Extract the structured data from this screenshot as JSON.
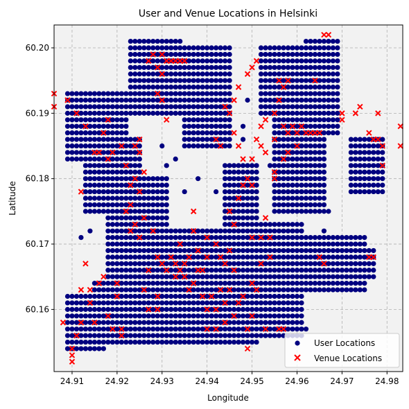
{
  "chart_data": {
    "type": "scatter",
    "title": "User and Venue Locations in Helsinki",
    "xlabel": "Longitude",
    "ylabel": "Latitude",
    "xlim": [
      24.906,
      24.9835
    ],
    "ylim": [
      60.1505,
      60.2035
    ],
    "x_ticks": [
      "24.91",
      "24.92",
      "24.93",
      "24.94",
      "24.95",
      "24.96",
      "24.97",
      "24.98"
    ],
    "y_ticks": [
      "60.16",
      "60.17",
      "60.18",
      "60.19",
      "60.20"
    ],
    "grid": true,
    "legend_position": "bottom-right",
    "series": [
      {
        "name": "User Locations",
        "marker": "circle",
        "color": "#000080",
        "grid_step": [
          0.001,
          0.001
        ],
        "regions": [
          {
            "x_range": [
              24.909,
              24.917
            ],
            "y_range": [
              60.154,
              60.162
            ]
          },
          {
            "x_range": [
              24.915,
              24.926
            ],
            "y_range": [
              60.155,
              60.164
            ]
          },
          {
            "x_range": [
              24.909,
              24.922
            ],
            "y_range": [
              60.183,
              60.193
            ]
          },
          {
            "x_range": [
              24.913,
              24.925
            ],
            "y_range": [
              60.175,
              60.186
            ]
          },
          {
            "x_range": [
              24.918,
              24.931
            ],
            "y_range": [
              60.165,
              60.18
            ]
          },
          {
            "x_range": [
              24.922,
              24.928
            ],
            "y_range": [
              60.16,
              60.17
            ]
          },
          {
            "x_range": [
              24.927,
              24.939
            ],
            "y_range": [
              60.155,
              60.172
            ]
          },
          {
            "x_range": [
              24.923,
              24.934
            ],
            "y_range": [
              60.19,
              60.201
            ]
          },
          {
            "x_range": [
              24.935,
              24.945
            ],
            "y_range": [
              60.185,
              60.2
            ]
          },
          {
            "x_range": [
              24.938,
              24.951
            ],
            "y_range": [
              60.155,
              60.172
            ]
          },
          {
            "x_range": [
              24.944,
              24.951
            ],
            "y_range": [
              60.172,
              60.182
            ]
          },
          {
            "x_range": [
              24.951,
              24.961
            ],
            "y_range": [
              60.156,
              60.173
            ]
          },
          {
            "x_range": [
              24.955,
              24.966
            ],
            "y_range": [
              60.175,
              60.19
            ]
          },
          {
            "x_range": [
              24.952,
              24.962
            ],
            "y_range": [
              60.19,
              60.2
            ]
          },
          {
            "x_range": [
              24.962,
              24.969
            ],
            "y_range": [
              60.187,
              60.201
            ]
          },
          {
            "x_range": [
              24.96,
              24.975
            ],
            "y_range": [
              60.163,
              60.171
            ]
          },
          {
            "x_range": [
              24.972,
              24.979
            ],
            "y_range": [
              60.178,
              60.186
            ]
          },
          {
            "x_range": [
              24.972,
              24.977
            ],
            "y_range": [
              60.165,
              60.169
            ]
          }
        ],
        "points": [
          [
            24.93,
            60.185
          ],
          [
            24.931,
            60.182
          ],
          [
            24.942,
            60.178
          ],
          [
            24.948,
            60.188
          ],
          [
            24.949,
            60.192
          ],
          [
            24.954,
            60.182
          ],
          [
            24.948,
            60.186
          ],
          [
            24.959,
            60.165
          ],
          [
            24.96,
            60.158
          ],
          [
            24.962,
            60.157
          ],
          [
            24.912,
            60.171
          ],
          [
            24.914,
            60.172
          ],
          [
            24.938,
            60.18
          ],
          [
            24.935,
            60.178
          ],
          [
            24.933,
            60.183
          ],
          [
            24.967,
            60.175
          ],
          [
            24.966,
            60.172
          ],
          [
            24.946,
            60.176
          ]
        ]
      },
      {
        "name": "Venue Locations",
        "marker": "x",
        "color": "#ff0000",
        "points": [
          [
            24.906,
            60.193
          ],
          [
            24.906,
            60.191
          ],
          [
            24.909,
            60.192
          ],
          [
            24.908,
            60.158
          ],
          [
            24.91,
            60.154
          ],
          [
            24.91,
            60.153
          ],
          [
            24.91,
            60.152
          ],
          [
            24.911,
            60.156
          ],
          [
            24.912,
            60.158
          ],
          [
            24.912,
            60.163
          ],
          [
            24.914,
            60.161
          ],
          [
            24.914,
            60.163
          ],
          [
            24.915,
            60.158
          ],
          [
            24.916,
            60.164
          ],
          [
            24.917,
            60.165
          ],
          [
            24.918,
            60.159
          ],
          [
            24.919,
            60.157
          ],
          [
            24.92,
            60.162
          ],
          [
            24.92,
            60.164
          ],
          [
            24.921,
            60.157
          ],
          [
            24.921,
            60.156
          ],
          [
            24.912,
            60.178
          ],
          [
            24.913,
            60.167
          ],
          [
            24.911,
            60.19
          ],
          [
            24.913,
            60.188
          ],
          [
            24.915,
            60.184
          ],
          [
            24.916,
            60.184
          ],
          [
            24.917,
            60.187
          ],
          [
            24.918,
            60.189
          ],
          [
            24.918,
            60.183
          ],
          [
            24.919,
            60.184
          ],
          [
            24.921,
            60.185
          ],
          [
            24.922,
            60.182
          ],
          [
            24.923,
            60.179
          ],
          [
            24.923,
            60.176
          ],
          [
            24.922,
            60.175
          ],
          [
            24.924,
            60.18
          ],
          [
            24.925,
            60.184
          ],
          [
            24.926,
            60.181
          ],
          [
            24.925,
            60.178
          ],
          [
            24.924,
            60.173
          ],
          [
            24.923,
            60.172
          ],
          [
            24.925,
            60.171
          ],
          [
            24.926,
            60.174
          ],
          [
            24.928,
            60.172
          ],
          [
            24.929,
            60.168
          ],
          [
            24.93,
            60.167
          ],
          [
            24.927,
            60.166
          ],
          [
            24.926,
            60.163
          ],
          [
            24.927,
            60.16
          ],
          [
            24.929,
            60.162
          ],
          [
            24.929,
            60.16
          ],
          [
            24.925,
            60.186
          ],
          [
            24.924,
            60.185
          ],
          [
            24.927,
            60.198
          ],
          [
            24.928,
            60.199
          ],
          [
            24.929,
            60.197
          ],
          [
            24.93,
            60.196
          ],
          [
            24.931,
            60.198
          ],
          [
            24.932,
            60.198
          ],
          [
            24.933,
            60.198
          ],
          [
            24.934,
            60.198
          ],
          [
            24.935,
            60.198
          ],
          [
            24.929,
            60.193
          ],
          [
            24.93,
            60.192
          ],
          [
            24.93,
            60.199
          ],
          [
            24.931,
            60.189
          ],
          [
            24.931,
            60.166
          ],
          [
            24.932,
            60.168
          ],
          [
            24.933,
            60.165
          ],
          [
            24.933,
            60.167
          ],
          [
            24.934,
            60.166
          ],
          [
            24.935,
            60.165
          ],
          [
            24.935,
            60.167
          ],
          [
            24.936,
            60.168
          ],
          [
            24.934,
            60.17
          ],
          [
            24.936,
            60.163
          ],
          [
            24.937,
            60.164
          ],
          [
            24.938,
            60.166
          ],
          [
            24.938,
            60.169
          ],
          [
            24.939,
            60.166
          ],
          [
            24.937,
            60.175
          ],
          [
            24.937,
            60.172
          ],
          [
            24.939,
            60.162
          ],
          [
            24.94,
            60.16
          ],
          [
            24.94,
            60.157
          ],
          [
            24.941,
            60.162
          ],
          [
            24.942,
            60.16
          ],
          [
            24.942,
            60.157
          ],
          [
            24.943,
            60.163
          ],
          [
            24.944,
            60.161
          ],
          [
            24.944,
            60.158
          ],
          [
            24.945,
            60.163
          ],
          [
            24.946,
            60.159
          ],
          [
            24.946,
            60.166
          ],
          [
            24.947,
            60.161
          ],
          [
            24.948,
            60.162
          ],
          [
            24.949,
            60.157
          ],
          [
            24.949,
            60.154
          ],
          [
            24.95,
            60.159
          ],
          [
            24.95,
            60.164
          ],
          [
            24.951,
            60.163
          ],
          [
            24.952,
            60.167
          ],
          [
            24.954,
            60.168
          ],
          [
            24.953,
            60.157
          ],
          [
            24.944,
            60.167
          ],
          [
            24.945,
            60.169
          ],
          [
            24.943,
            60.168
          ],
          [
            24.942,
            60.17
          ],
          [
            24.94,
            60.168
          ],
          [
            24.94,
            60.171
          ],
          [
            24.946,
            60.173
          ],
          [
            24.945,
            60.175
          ],
          [
            24.947,
            60.177
          ],
          [
            24.948,
            60.179
          ],
          [
            24.949,
            60.18
          ],
          [
            24.95,
            60.179
          ],
          [
            24.948,
            60.183
          ],
          [
            24.947,
            60.185
          ],
          [
            24.946,
            60.187
          ],
          [
            24.945,
            60.19
          ],
          [
            24.944,
            60.191
          ],
          [
            24.946,
            60.192
          ],
          [
            24.947,
            60.194
          ],
          [
            24.949,
            60.196
          ],
          [
            24.95,
            60.197
          ],
          [
            24.951,
            60.198
          ],
          [
            24.943,
            60.185
          ],
          [
            24.942,
            60.186
          ],
          [
            24.95,
            60.183
          ],
          [
            24.951,
            60.186
          ],
          [
            24.952,
            60.185
          ],
          [
            24.953,
            60.184
          ],
          [
            24.952,
            60.188
          ],
          [
            24.953,
            60.189
          ],
          [
            24.955,
            60.186
          ],
          [
            24.955,
            60.19
          ],
          [
            24.956,
            60.192
          ],
          [
            24.957,
            60.194
          ],
          [
            24.958,
            60.195
          ],
          [
            24.956,
            60.195
          ],
          [
            24.957,
            60.188
          ],
          [
            24.958,
            60.187
          ],
          [
            24.959,
            60.188
          ],
          [
            24.96,
            60.187
          ],
          [
            24.961,
            60.188
          ],
          [
            24.962,
            60.187
          ],
          [
            24.963,
            60.187
          ],
          [
            24.964,
            60.187
          ],
          [
            24.965,
            60.187
          ],
          [
            24.958,
            60.184
          ],
          [
            24.957,
            60.183
          ],
          [
            24.955,
            60.181
          ],
          [
            24.955,
            60.18
          ],
          [
            24.96,
            60.185
          ],
          [
            24.966,
            60.202
          ],
          [
            24.967,
            60.202
          ],
          [
            24.964,
            60.195
          ],
          [
            24.97,
            60.19
          ],
          [
            24.97,
            60.189
          ],
          [
            24.973,
            60.19
          ],
          [
            24.974,
            60.191
          ],
          [
            24.976,
            60.187
          ],
          [
            24.977,
            60.186
          ],
          [
            24.978,
            60.186
          ],
          [
            24.978,
            60.19
          ],
          [
            24.979,
            60.182
          ],
          [
            24.979,
            60.185
          ],
          [
            24.983,
            60.188
          ],
          [
            24.983,
            60.185
          ],
          [
            24.976,
            60.168
          ],
          [
            24.977,
            60.168
          ],
          [
            24.965,
            60.168
          ],
          [
            24.966,
            60.167
          ],
          [
            24.956,
            60.157
          ],
          [
            24.957,
            60.157
          ],
          [
            24.953,
            60.174
          ],
          [
            24.952,
            60.171
          ],
          [
            24.95,
            60.171
          ],
          [
            24.954,
            60.171
          ]
        ]
      }
    ]
  }
}
